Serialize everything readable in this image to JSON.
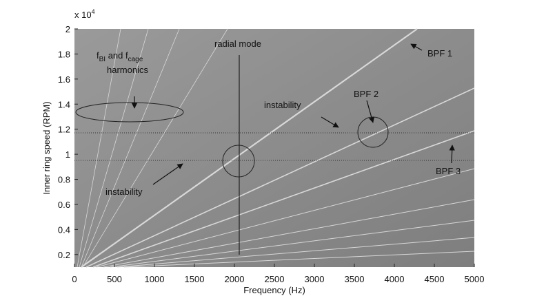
{
  "chart_data": {
    "type": "spectrogram",
    "xlabel": "Frequency (Hz)",
    "ylabel": "Inner ring speed (RPM)",
    "y_multiplier": {
      "base": "x 10",
      "exp": "4"
    },
    "xlim": [
      0,
      5000
    ],
    "xticks": [
      0,
      500,
      1000,
      1500,
      2000,
      2500,
      3000,
      3500,
      4000,
      4500,
      5000
    ],
    "ylim": [
      0.1,
      2
    ],
    "yticks": [
      0.2,
      0.4,
      0.6,
      0.8,
      1,
      1.2,
      1.4,
      1.6,
      1.8,
      2
    ],
    "annotations": {
      "radial_mode": "radial mode",
      "bpf1": "BPF 1",
      "bpf2": "BPF 2",
      "bpf3": "BPF 3",
      "instability_upper": "instability",
      "instability_lower": "instability",
      "harmonics": {
        "f1": "f",
        "sub1": "BI",
        "mid": " and f",
        "sub2": "cage",
        "line2": "harmonics"
      }
    }
  }
}
